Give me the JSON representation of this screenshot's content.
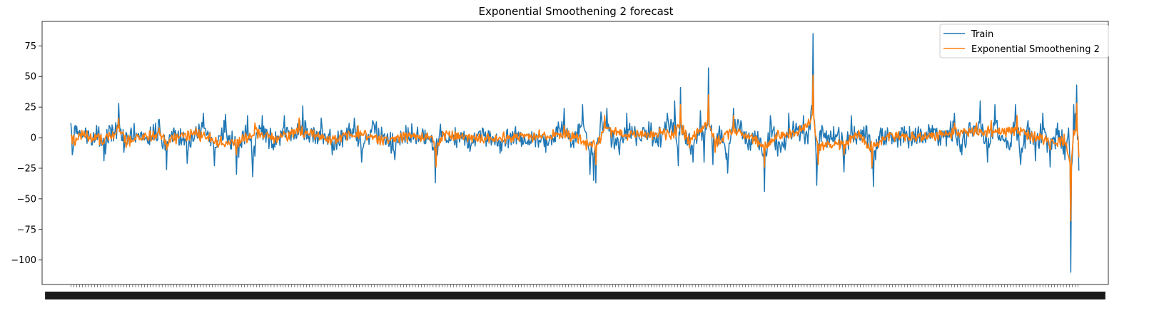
{
  "chart_data": {
    "type": "line",
    "title": "Exponential Smoothening 2 forecast",
    "xlabel": "",
    "ylabel": "",
    "ylim": [
      -120,
      95
    ],
    "xlim": [
      -39,
      1409
    ],
    "yticks": [
      75,
      50,
      25,
      0,
      -25,
      -50,
      -75,
      -100
    ],
    "grid": false,
    "legend_position": "top-right",
    "n_points": 1370,
    "series": [
      {
        "name": "Train",
        "color": "#1f77b4",
        "keypoints": [
          [
            0,
            12
          ],
          [
            2,
            -14
          ],
          [
            6,
            10
          ],
          [
            12,
            6
          ],
          [
            20,
            8
          ],
          [
            28,
            -6
          ],
          [
            35,
            10
          ],
          [
            45,
            -19
          ],
          [
            52,
            10
          ],
          [
            65,
            28
          ],
          [
            72,
            -12
          ],
          [
            82,
            8
          ],
          [
            95,
            4
          ],
          [
            105,
            -5
          ],
          [
            115,
            12
          ],
          [
            120,
            15
          ],
          [
            130,
            -26
          ],
          [
            140,
            8
          ],
          [
            150,
            -6
          ],
          [
            158,
            -21
          ],
          [
            170,
            9
          ],
          [
            180,
            20
          ],
          [
            195,
            -23
          ],
          [
            210,
            19
          ],
          [
            225,
            -30
          ],
          [
            240,
            18
          ],
          [
            247,
            -32
          ],
          [
            260,
            18
          ],
          [
            275,
            -10
          ],
          [
            290,
            18
          ],
          [
            305,
            4
          ],
          [
            315,
            26
          ],
          [
            325,
            2
          ],
          [
            340,
            16
          ],
          [
            355,
            -14
          ],
          [
            370,
            3
          ],
          [
            385,
            16
          ],
          [
            395,
            -20
          ],
          [
            410,
            14
          ],
          [
            425,
            2
          ],
          [
            440,
            -18
          ],
          [
            455,
            10
          ],
          [
            470,
            4
          ],
          [
            480,
            -5
          ],
          [
            490,
            2
          ],
          [
            495,
            -37
          ],
          [
            502,
            11
          ],
          [
            510,
            -4
          ],
          [
            525,
            3
          ],
          [
            540,
            -8
          ],
          [
            555,
            5
          ],
          [
            570,
            2
          ],
          [
            585,
            -11
          ],
          [
            600,
            5
          ],
          [
            615,
            -4
          ],
          [
            630,
            3
          ],
          [
            645,
            -12
          ],
          [
            660,
            9
          ],
          [
            670,
            24
          ],
          [
            680,
            -6
          ],
          [
            695,
            27
          ],
          [
            705,
            -30
          ],
          [
            710,
            -35
          ],
          [
            713,
            -37
          ],
          [
            720,
            21
          ],
          [
            728,
            24
          ],
          [
            735,
            -5
          ],
          [
            745,
            -14
          ],
          [
            755,
            20
          ],
          [
            770,
            5
          ],
          [
            785,
            13
          ],
          [
            795,
            -4
          ],
          [
            810,
            20
          ],
          [
            820,
            30
          ],
          [
            825,
            -23
          ],
          [
            828,
            41
          ],
          [
            835,
            -5
          ],
          [
            845,
            -20
          ],
          [
            855,
            22
          ],
          [
            860,
            -20
          ],
          [
            866,
            57
          ],
          [
            872,
            -22
          ],
          [
            880,
            5
          ],
          [
            892,
            -29
          ],
          [
            900,
            24
          ],
          [
            910,
            14
          ],
          [
            920,
            -10
          ],
          [
            930,
            -2
          ],
          [
            935,
            -10
          ],
          [
            942,
            -44
          ],
          [
            950,
            18
          ],
          [
            960,
            -15
          ],
          [
            970,
            -10
          ],
          [
            975,
            20
          ],
          [
            985,
            12
          ],
          [
            995,
            18
          ],
          [
            1000,
            2
          ],
          [
            1008,
            85
          ],
          [
            1013,
            -39
          ],
          [
            1020,
            10
          ],
          [
            1030,
            -4
          ],
          [
            1042,
            5
          ],
          [
            1050,
            -28
          ],
          [
            1060,
            18
          ],
          [
            1070,
            4
          ],
          [
            1080,
            10
          ],
          [
            1088,
            -25
          ],
          [
            1090,
            -40
          ],
          [
            1100,
            8
          ],
          [
            1110,
            2
          ],
          [
            1120,
            -3
          ],
          [
            1130,
            6
          ],
          [
            1140,
            -2
          ],
          [
            1150,
            4
          ],
          [
            1160,
            -2
          ],
          [
            1170,
            10
          ],
          [
            1180,
            2
          ],
          [
            1190,
            6
          ],
          [
            1200,
            20
          ],
          [
            1210,
            -14
          ],
          [
            1220,
            12
          ],
          [
            1235,
            30
          ],
          [
            1245,
            -20
          ],
          [
            1255,
            27
          ],
          [
            1265,
            2
          ],
          [
            1275,
            -10
          ],
          [
            1283,
            27
          ],
          [
            1290,
            -22
          ],
          [
            1300,
            14
          ],
          [
            1310,
            -19
          ],
          [
            1320,
            20
          ],
          [
            1330,
            -24
          ],
          [
            1340,
            12
          ],
          [
            1350,
            -18
          ],
          [
            1355,
            8
          ],
          [
            1358,
            -110
          ],
          [
            1362,
            27
          ],
          [
            1366,
            43
          ],
          [
            1369,
            -27
          ]
        ]
      },
      {
        "name": "Exponential Smoothening 2",
        "color": "#ff7f0e",
        "keypoints": [
          [
            0,
            2
          ],
          [
            5,
            -6
          ],
          [
            15,
            6
          ],
          [
            30,
            0
          ],
          [
            45,
            -5
          ],
          [
            65,
            16
          ],
          [
            75,
            -8
          ],
          [
            100,
            2
          ],
          [
            120,
            8
          ],
          [
            130,
            -10
          ],
          [
            150,
            3
          ],
          [
            170,
            8
          ],
          [
            200,
            -8
          ],
          [
            225,
            -14
          ],
          [
            250,
            12
          ],
          [
            280,
            -4
          ],
          [
            310,
            16
          ],
          [
            330,
            6
          ],
          [
            360,
            -5
          ],
          [
            390,
            10
          ],
          [
            420,
            -6
          ],
          [
            460,
            4
          ],
          [
            490,
            1
          ],
          [
            496,
            -24
          ],
          [
            505,
            5
          ],
          [
            560,
            -3
          ],
          [
            620,
            2
          ],
          [
            670,
            10
          ],
          [
            700,
            -10
          ],
          [
            713,
            -22
          ],
          [
            725,
            18
          ],
          [
            760,
            5
          ],
          [
            800,
            8
          ],
          [
            820,
            10
          ],
          [
            828,
            27
          ],
          [
            840,
            -8
          ],
          [
            866,
            35
          ],
          [
            875,
            -12
          ],
          [
            900,
            18
          ],
          [
            930,
            -5
          ],
          [
            942,
            -24
          ],
          [
            960,
            6
          ],
          [
            990,
            10
          ],
          [
            1008,
            51
          ],
          [
            1015,
            -22
          ],
          [
            1050,
            -14
          ],
          [
            1070,
            6
          ],
          [
            1088,
            -24
          ],
          [
            1110,
            3
          ],
          [
            1150,
            2
          ],
          [
            1180,
            6
          ],
          [
            1200,
            12
          ],
          [
            1230,
            12
          ],
          [
            1250,
            14
          ],
          [
            1285,
            18
          ],
          [
            1300,
            6
          ],
          [
            1330,
            -10
          ],
          [
            1350,
            -5
          ],
          [
            1358,
            -68
          ],
          [
            1362,
            6
          ],
          [
            1366,
            28
          ],
          [
            1369,
            -16
          ]
        ]
      }
    ]
  }
}
